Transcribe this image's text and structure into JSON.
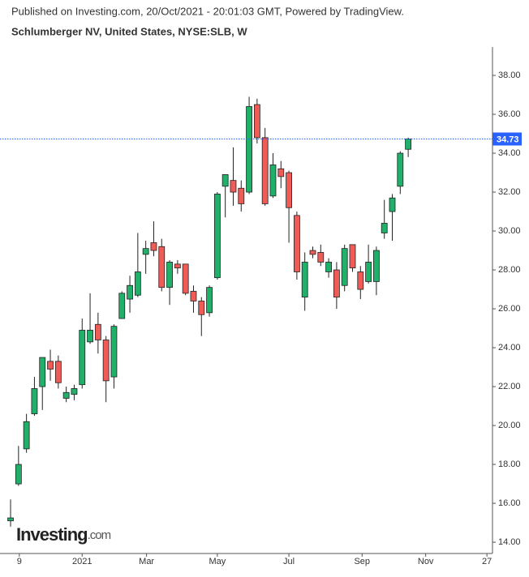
{
  "header": "Published on Investing.com, 20/Oct/2021 - 20:01:03 GMT, Powered by TradingView.",
  "chart_data": {
    "type": "candlestick",
    "title": "Schlumberger NV, United States, NYSE:SLB, W",
    "x": [
      0,
      1,
      2,
      3,
      4,
      5,
      6,
      7,
      8,
      9,
      10,
      11,
      12,
      13,
      14,
      15,
      16,
      17,
      18,
      19,
      20,
      21,
      22,
      23,
      24,
      25,
      26,
      27,
      28,
      29,
      30,
      31,
      32,
      33,
      34,
      35,
      36,
      37,
      38,
      39,
      40,
      41,
      42,
      43,
      44,
      45,
      46,
      47,
      48,
      49,
      50
    ],
    "open": [
      15.1,
      17.0,
      18.8,
      20.6,
      22.0,
      23.3,
      23.3,
      21.4,
      21.6,
      22.1,
      24.3,
      25.2,
      24.4,
      22.5,
      25.5,
      26.5,
      26.7,
      28.8,
      29.4,
      29.2,
      27.1,
      28.3,
      28.3,
      26.9,
      26.4,
      25.8,
      27.6,
      32.3,
      32.6,
      32.2,
      32.0,
      36.5,
      34.8,
      31.8,
      33.2,
      33.0,
      30.8,
      26.6,
      29.0,
      28.9,
      27.9,
      28.0,
      27.2,
      29.3,
      27.9,
      27.4,
      27.4,
      29.9,
      31.0,
      32.3,
      34.2
    ],
    "high": [
      16.2,
      18.95,
      20.6,
      22.5,
      23.5,
      23.9,
      23.6,
      22.0,
      22.1,
      25.5,
      26.8,
      25.8,
      24.6,
      25.2,
      26.9,
      27.7,
      29.9,
      29.5,
      30.5,
      29.6,
      28.5,
      28.5,
      28.3,
      27.2,
      26.6,
      27.2,
      32.0,
      32.9,
      34.3,
      32.6,
      36.9,
      36.8,
      35.3,
      34.0,
      33.6,
      33.1,
      31.0,
      28.9,
      29.2,
      29.3,
      28.6,
      28.4,
      29.3,
      29.3,
      28.2,
      29.3,
      29.2,
      31.6,
      31.9,
      34.1,
      34.8
    ],
    "low": [
      14.8,
      16.9,
      18.6,
      20.5,
      20.8,
      22.3,
      21.9,
      21.2,
      21.3,
      21.9,
      24.2,
      23.7,
      21.2,
      21.9,
      25.5,
      25.8,
      26.6,
      27.8,
      28.7,
      26.9,
      26.2,
      27.8,
      26.7,
      25.8,
      24.6,
      25.6,
      27.5,
      30.7,
      31.3,
      31.0,
      31.9,
      34.5,
      31.3,
      31.7,
      32.2,
      29.4,
      27.5,
      25.9,
      28.6,
      28.2,
      27.6,
      26.0,
      26.9,
      27.9,
      26.5,
      27.3,
      26.7,
      29.6,
      29.5,
      31.9,
      33.8
    ],
    "close": [
      15.25,
      18.0,
      20.2,
      21.9,
      23.5,
      22.9,
      22.2,
      21.7,
      21.9,
      24.9,
      24.9,
      24.4,
      22.3,
      25.1,
      26.8,
      27.2,
      27.9,
      29.1,
      29.0,
      27.1,
      28.4,
      28.1,
      26.8,
      26.4,
      25.7,
      27.1,
      31.9,
      32.9,
      32.0,
      31.4,
      36.4,
      34.8,
      31.4,
      33.4,
      32.8,
      31.2,
      27.9,
      28.4,
      28.8,
      28.4,
      28.4,
      26.6,
      29.1,
      28.1,
      27.0,
      28.4,
      29.0,
      30.4,
      31.7,
      34.0,
      34.73
    ],
    "up_color": "#1fb06a",
    "down_color": "#ef5b57",
    "last_price": 34.73,
    "last_price_color": "#2962ff",
    "ylim": [
      13.42,
      39.46
    ],
    "yticks": [
      {
        "value": 14,
        "label": "14.00"
      },
      {
        "value": 16,
        "label": "16.00"
      },
      {
        "value": 18,
        "label": "18.00"
      },
      {
        "value": 20,
        "label": "20.00"
      },
      {
        "value": 22,
        "label": "22.00"
      },
      {
        "value": 24,
        "label": "24.00"
      },
      {
        "value": 26,
        "label": "26.00"
      },
      {
        "value": 28,
        "label": "28.00"
      },
      {
        "value": 30,
        "label": "30.00"
      },
      {
        "value": 32,
        "label": "32.00"
      },
      {
        "value": 34,
        "label": "34.00"
      },
      {
        "value": 36,
        "label": "36.00"
      },
      {
        "value": 38,
        "label": "38.00"
      }
    ],
    "xlim": [
      -1.33,
      60.6
    ],
    "xticks": [
      {
        "value": 1.1,
        "label": "9"
      },
      {
        "value": 9,
        "label": "2021"
      },
      {
        "value": 17.1,
        "label": "Mar"
      },
      {
        "value": 26,
        "label": "May"
      },
      {
        "value": 35,
        "label": "Jul"
      },
      {
        "value": 44.2,
        "label": "Sep"
      },
      {
        "value": 52.2,
        "label": "Nov"
      },
      {
        "value": 59.9,
        "label": "27"
      }
    ],
    "watermark": [
      "Investing",
      ".com"
    ]
  }
}
